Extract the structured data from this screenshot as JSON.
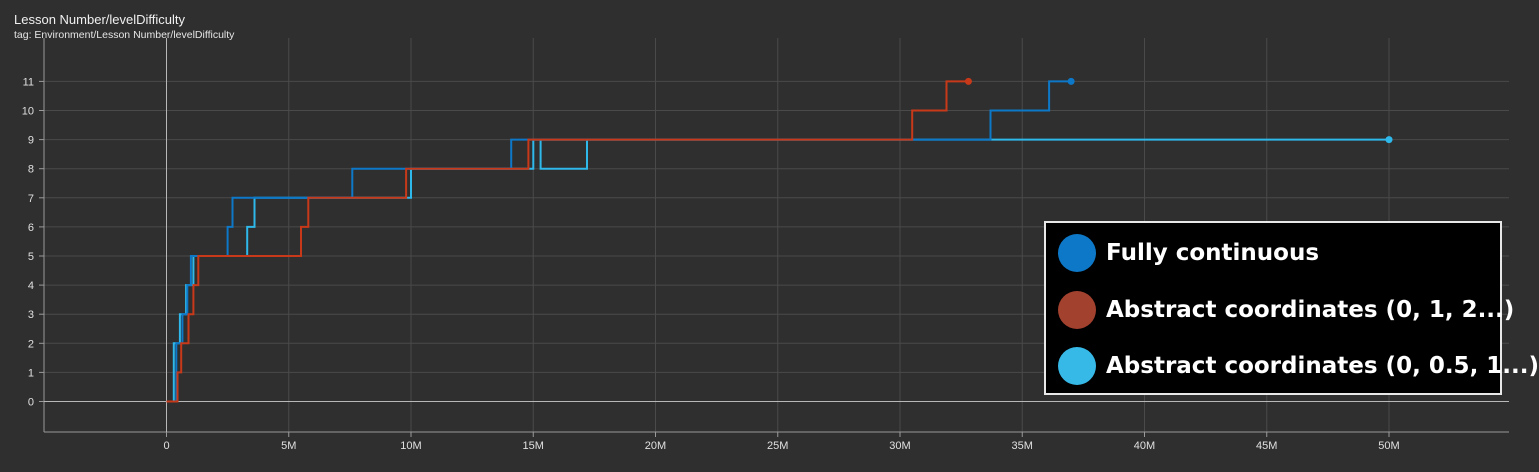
{
  "header": {
    "title": "Lesson Number/levelDifficulty",
    "tag": "tag: Environment/Lesson Number/levelDifficulty"
  },
  "chart_data": {
    "type": "line",
    "title": "Lesson Number/levelDifficulty",
    "xlim": [
      -5000000,
      55000000
    ],
    "ylim": [
      -1,
      12
    ],
    "x_ticks": [
      0,
      5000000,
      10000000,
      15000000,
      20000000,
      25000000,
      30000000,
      35000000,
      40000000,
      45000000,
      50000000
    ],
    "x_tick_labels": [
      "0",
      "5M",
      "10M",
      "15M",
      "20M",
      "25M",
      "30M",
      "35M",
      "40M",
      "45M",
      "50M"
    ],
    "y_ticks": [
      0,
      1,
      2,
      3,
      4,
      5,
      6,
      7,
      8,
      9,
      10,
      11
    ],
    "y_tick_labels": [
      "0",
      "1",
      "2",
      "3",
      "4",
      "5",
      "6",
      "7",
      "8",
      "9",
      "10",
      "11"
    ],
    "grid": true,
    "legend_position": "bottom-right",
    "series": [
      {
        "name": "Fully continuous",
        "color": "#0d78c8",
        "points": [
          [
            0,
            0
          ],
          [
            400000,
            0
          ],
          [
            400000,
            2
          ],
          [
            650000,
            2
          ],
          [
            650000,
            3
          ],
          [
            850000,
            3
          ],
          [
            850000,
            4
          ],
          [
            1000000,
            4
          ],
          [
            1000000,
            5
          ],
          [
            2500000,
            5
          ],
          [
            2500000,
            6
          ],
          [
            2700000,
            6
          ],
          [
            2700000,
            7
          ],
          [
            7600000,
            7
          ],
          [
            7600000,
            8
          ],
          [
            14100000,
            8
          ],
          [
            14100000,
            9
          ],
          [
            33700000,
            9
          ],
          [
            33700000,
            10
          ],
          [
            36100000,
            10
          ],
          [
            36100000,
            11
          ],
          [
            37000000,
            11
          ]
        ]
      },
      {
        "name": "Abstract coordinates (0, 1, 2...)",
        "color": "#c8391a",
        "points": [
          [
            0,
            0
          ],
          [
            450000,
            0
          ],
          [
            450000,
            1
          ],
          [
            600000,
            1
          ],
          [
            600000,
            2
          ],
          [
            900000,
            2
          ],
          [
            900000,
            3
          ],
          [
            1100000,
            3
          ],
          [
            1100000,
            4
          ],
          [
            1300000,
            4
          ],
          [
            1300000,
            5
          ],
          [
            5500000,
            5
          ],
          [
            5500000,
            6
          ],
          [
            5800000,
            6
          ],
          [
            5800000,
            7
          ],
          [
            9800000,
            7
          ],
          [
            9800000,
            8
          ],
          [
            14800000,
            8
          ],
          [
            14800000,
            9
          ],
          [
            30500000,
            9
          ],
          [
            30500000,
            10
          ],
          [
            31900000,
            10
          ],
          [
            31900000,
            11
          ],
          [
            32800000,
            11
          ]
        ]
      },
      {
        "name": "Abstract coordinates (0, 0.5, 1...)",
        "color": "#2fb8ea",
        "points": [
          [
            0,
            0
          ],
          [
            300000,
            0
          ],
          [
            300000,
            2
          ],
          [
            550000,
            2
          ],
          [
            550000,
            3
          ],
          [
            800000,
            3
          ],
          [
            800000,
            4
          ],
          [
            1100000,
            4
          ],
          [
            1100000,
            5
          ],
          [
            3300000,
            5
          ],
          [
            3300000,
            6
          ],
          [
            3600000,
            6
          ],
          [
            3600000,
            7
          ],
          [
            10000000,
            7
          ],
          [
            10000000,
            8
          ],
          [
            15000000,
            8
          ],
          [
            15000000,
            9
          ],
          [
            17200000,
            9
          ],
          [
            17200000,
            8
          ],
          [
            15300000,
            8
          ],
          [
            15300000,
            9
          ],
          [
            50000000,
            9
          ]
        ]
      }
    ]
  },
  "legend": {
    "items": [
      {
        "label": "Fully continuous",
        "color": "#0d78c8"
      },
      {
        "label": "Abstract coordinates (0, 1, 2...)",
        "color": "#a3412f"
      },
      {
        "label": "Abstract coordinates (0, 0.5, 1...)",
        "color": "#37b9e8"
      }
    ]
  }
}
